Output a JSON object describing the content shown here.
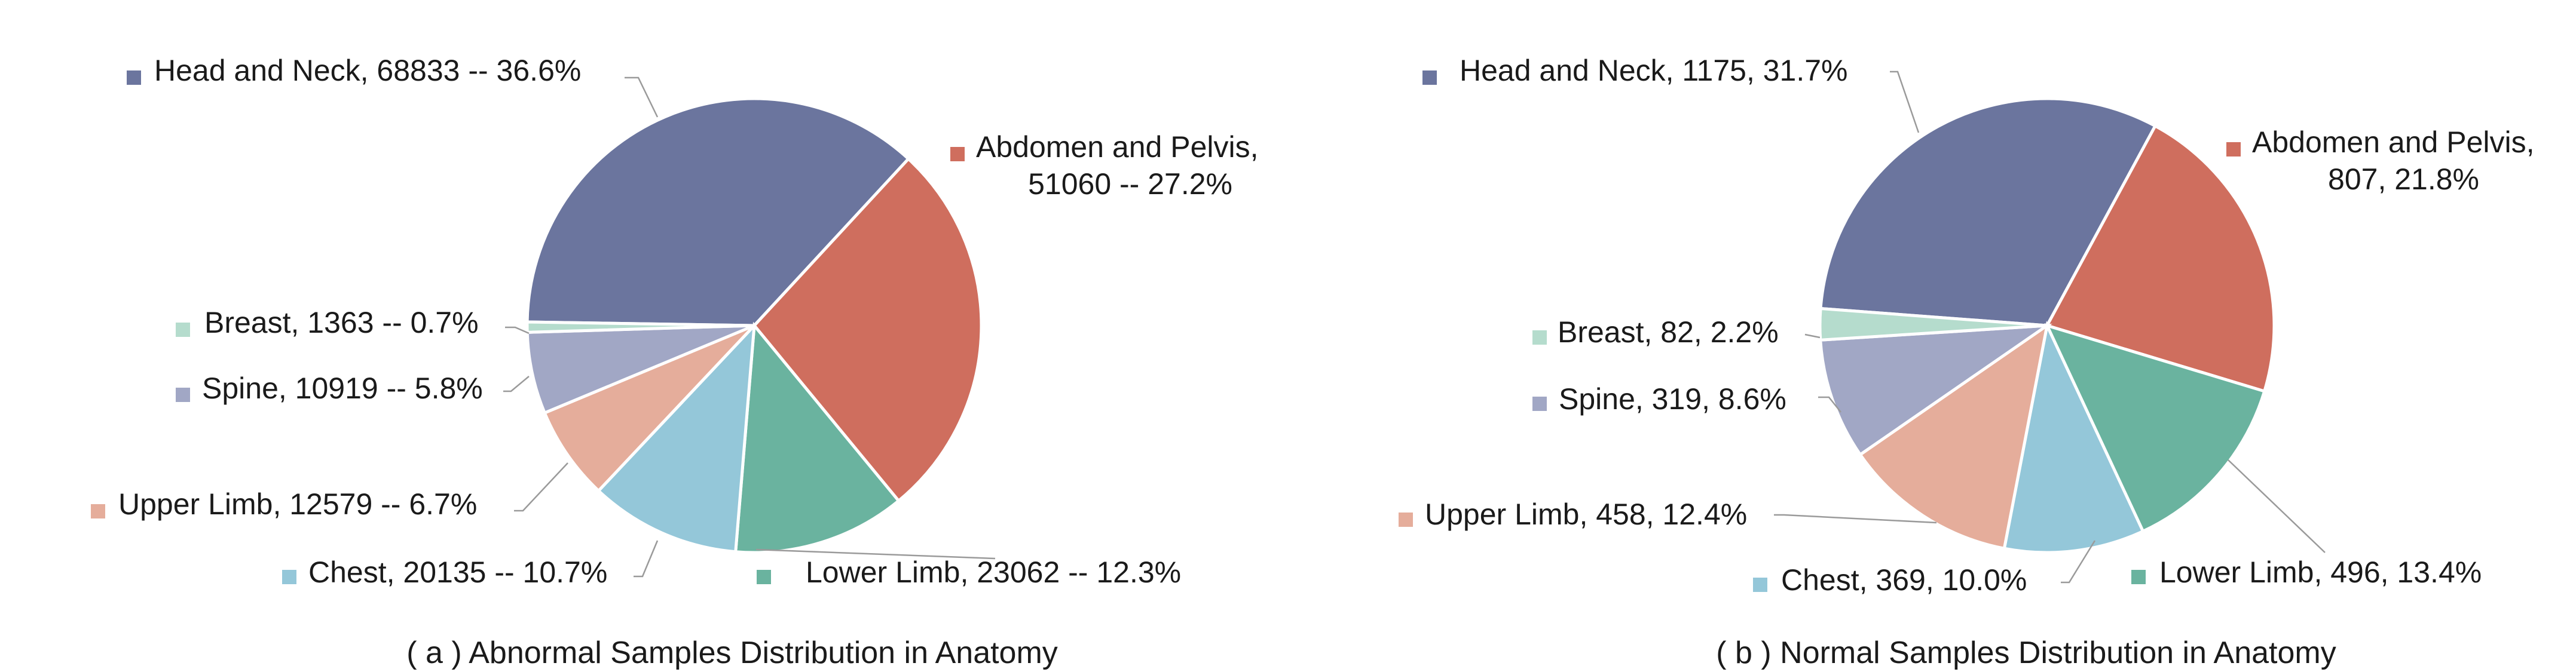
{
  "chart_data": [
    {
      "type": "pie",
      "title": "( a ) Abnormal Samples Distribution in Anatomy",
      "slices": [
        {
          "name": "Head and Neck",
          "value": 68833,
          "percent": 36.6,
          "color": "#6b759e",
          "label_lines": [
            "Head and Neck, 68833 -- 36.6%"
          ]
        },
        {
          "name": "Abdomen and Pelvis",
          "value": 51060,
          "percent": 27.2,
          "color": "#cf6e5e",
          "label_lines": [
            "Abdomen and Pelvis,",
            "51060 -- 27.2%"
          ]
        },
        {
          "name": "Lower Limb",
          "value": 23062,
          "percent": 12.3,
          "color": "#6ab39f",
          "label_lines": [
            "Lower Limb, 23062 -- 12.3%"
          ]
        },
        {
          "name": "Chest",
          "value": 20135,
          "percent": 10.7,
          "color": "#94c7d9",
          "label_lines": [
            "Chest, 20135 -- 10.7%"
          ]
        },
        {
          "name": "Upper Limb",
          "value": 12579,
          "percent": 6.7,
          "color": "#e5ad9b",
          "label_lines": [
            "Upper Limb, 12579 -- 6.7%"
          ]
        },
        {
          "name": "Spine",
          "value": 10919,
          "percent": 5.8,
          "color": "#a1a7c5",
          "label_lines": [
            "Spine, 10919 -- 5.8%"
          ]
        },
        {
          "name": "Breast",
          "value": 1363,
          "percent": 0.7,
          "color": "#b5dccd",
          "label_lines": [
            "Breast, 1363 -- 0.7%"
          ]
        }
      ]
    },
    {
      "type": "pie",
      "title": "( b ) Normal Samples Distribution in Anatomy",
      "slices": [
        {
          "name": "Head and Neck",
          "value": 1175,
          "percent": 31.7,
          "color": "#6b759e",
          "label_lines": [
            "Head and Neck, 1175, 31.7%"
          ]
        },
        {
          "name": "Abdomen and Pelvis",
          "value": 807,
          "percent": 21.8,
          "color": "#cf6e5e",
          "label_lines": [
            "Abdomen and Pelvis,",
            "807, 21.8%"
          ]
        },
        {
          "name": "Lower Limb",
          "value": 496,
          "percent": 13.4,
          "color": "#6ab39f",
          "label_lines": [
            "Lower Limb, 496, 13.4%"
          ]
        },
        {
          "name": "Chest",
          "value": 369,
          "percent": 10.0,
          "color": "#94c7d9",
          "label_lines": [
            "Chest, 369, 10.0%"
          ]
        },
        {
          "name": "Upper Limb",
          "value": 458,
          "percent": 12.4,
          "color": "#e5ad9b",
          "label_lines": [
            "Upper Limb, 458, 12.4%"
          ]
        },
        {
          "name": "Spine",
          "value": 319,
          "percent": 8.6,
          "color": "#a1a7c5",
          "label_lines": [
            "Spine, 319, 8.6%"
          ]
        },
        {
          "name": "Breast",
          "value": 82,
          "percent": 2.2,
          "color": "#b5dccd",
          "label_lines": [
            "Breast, 82, 2.2%"
          ]
        }
      ]
    }
  ]
}
